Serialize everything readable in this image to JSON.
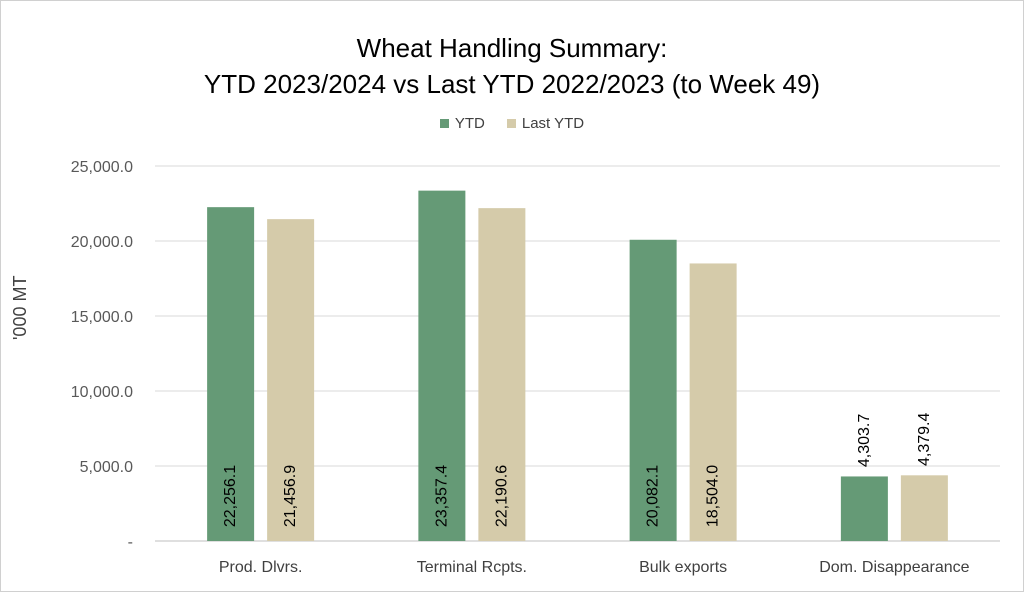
{
  "chart_data": {
    "type": "bar",
    "title": [
      "Wheat Handling Summary:",
      "YTD 2023/2024 vs Last YTD 2022/2023 (to Week 49)"
    ],
    "xlabel": "",
    "ylabel": "'000 MT",
    "ylim": [
      0,
      25000
    ],
    "yticks": [
      0,
      5000,
      10000,
      15000,
      20000,
      25000
    ],
    "ytick_labels": [
      "-",
      "5,000.0",
      "10,000.0",
      "15,000.0",
      "20,000.0",
      "25,000.0"
    ],
    "grid": true,
    "legend_position": "top",
    "categories": [
      "Prod. Dlvrs.",
      "Terminal Rcpts.",
      "Bulk exports",
      "Dom. Disappearance"
    ],
    "series": [
      {
        "name": "YTD",
        "color": "#659A76",
        "values": [
          22256.1,
          23357.4,
          20082.1,
          4303.7
        ],
        "labels": [
          "22,256.1",
          "23,357.4",
          "20,082.1",
          "4,303.7"
        ]
      },
      {
        "name": "Last YTD",
        "color": "#D5CBAA",
        "values": [
          21456.9,
          22190.6,
          18504.0,
          4379.4
        ],
        "labels": [
          "21,456.9",
          "22,190.6",
          "18,504.0",
          "4,379.4"
        ]
      }
    ]
  }
}
